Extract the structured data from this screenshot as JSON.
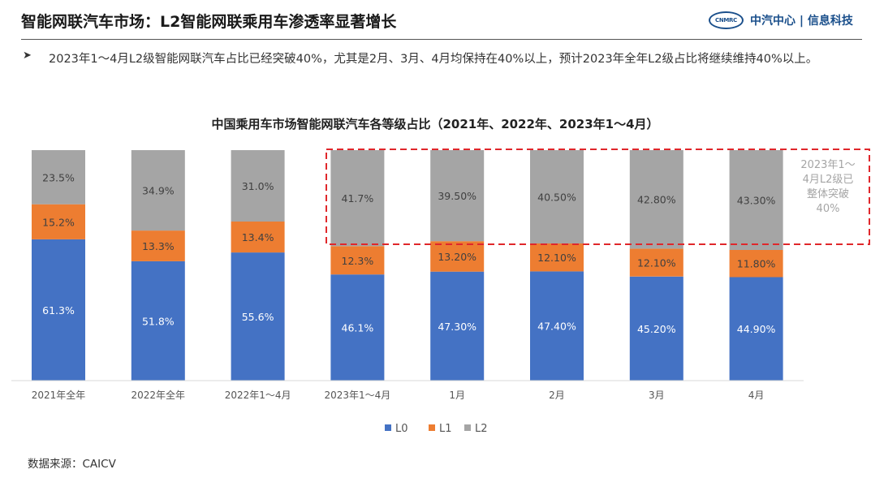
{
  "header": {
    "title": "智能网联汽车市场：L2智能网联乘用车渗透率显著增长",
    "logo_emblem": "CNMRC",
    "logo_text": "中汽中心 | 信息科技"
  },
  "bullet": {
    "icon": "arrow-bullet-icon",
    "text": "2023年1～4月L2级智能网联汽车占比已经突破40%，尤其是2月、3月、4月均保持在40%以上，预计2023年全年L2级占比将继续维持40%以上。"
  },
  "source": "数据来源：CAICV",
  "colors": {
    "L0": "#4472C4",
    "L1": "#ED7D31",
    "L2": "#A5A5A5",
    "highlight_border": "#E0272B",
    "annotation_text": "#A5A5A5"
  },
  "chart_data": {
    "type": "bar",
    "stacked": true,
    "title": "中国乘用车市场智能网联汽车各等级占比（2021年、2022年、2023年1～4月）",
    "categories": [
      "2021年全年",
      "2022年全年",
      "2022年1～4月",
      "2023年1～4月",
      "1月",
      "2月",
      "3月",
      "4月"
    ],
    "series": [
      {
        "name": "L0",
        "values": [
          61.3,
          51.8,
          55.6,
          46.1,
          47.3,
          47.4,
          45.2,
          44.9
        ],
        "labels": [
          "61.3%",
          "51.8%",
          "55.6%",
          "46.1%",
          "47.30%",
          "47.40%",
          "45.20%",
          "44.90%"
        ]
      },
      {
        "name": "L1",
        "values": [
          15.2,
          13.3,
          13.4,
          12.3,
          13.2,
          12.1,
          12.1,
          11.8
        ],
        "labels": [
          "15.2%",
          "13.3%",
          "13.4%",
          "12.3%",
          "13.20%",
          "12.10%",
          "12.10%",
          "11.80%"
        ]
      },
      {
        "name": "L2",
        "values": [
          23.5,
          34.9,
          31.0,
          41.7,
          39.5,
          40.5,
          42.8,
          43.3
        ],
        "labels": [
          "23.5%",
          "34.9%",
          "31.0%",
          "41.7%",
          "39.50%",
          "40.50%",
          "42.80%",
          "43.30%"
        ]
      }
    ],
    "annotation": "2023年1～4月L2级已整体突破40%",
    "annotation_lines": [
      "2023年1～",
      "4月L2级已",
      "整体突破",
      "40%"
    ],
    "legend_position": "bottom",
    "grid": false
  }
}
